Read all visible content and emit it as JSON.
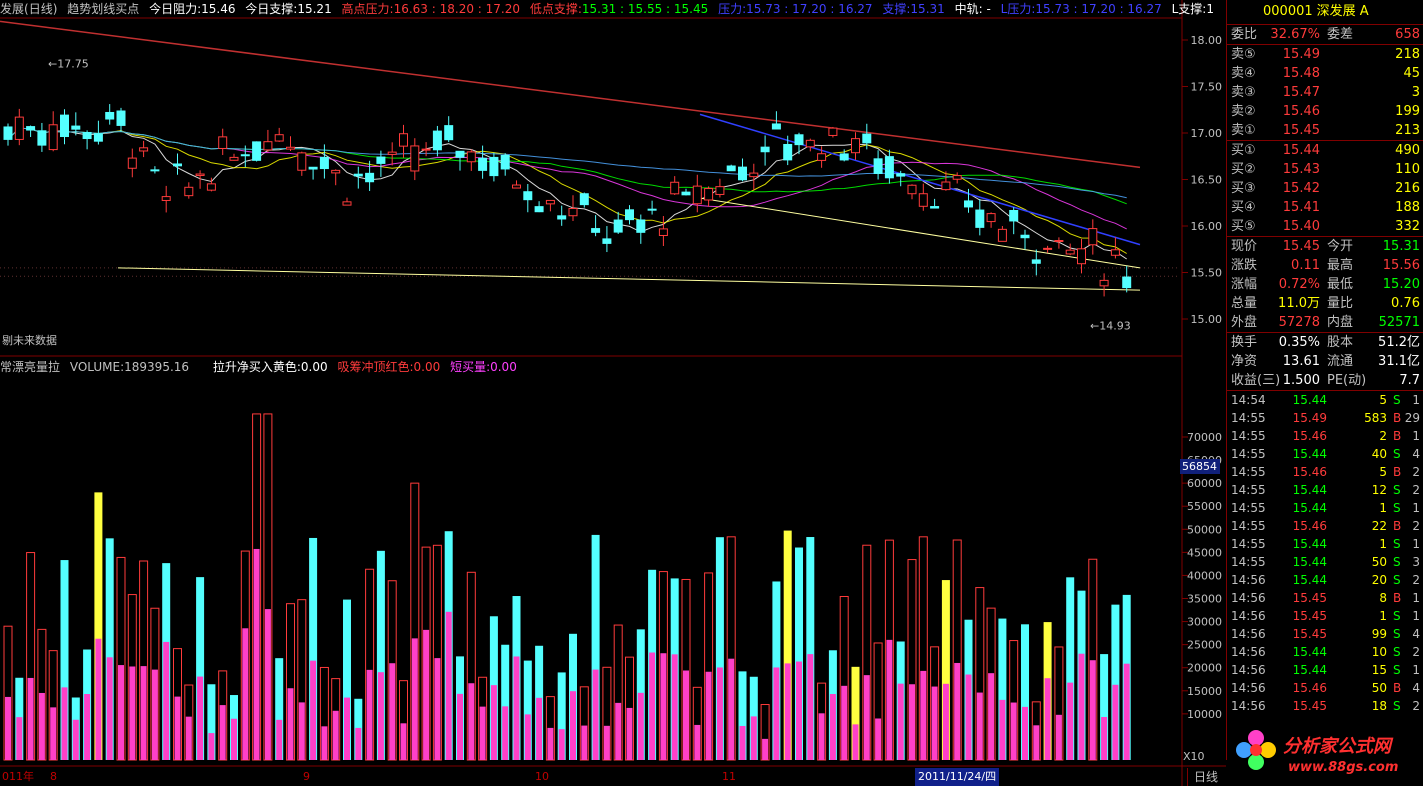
{
  "header": {
    "stock": "发展",
    "period": "(日线)",
    "indicator": "趋势划线买点",
    "resist_label": "今日阻力:",
    "resist_value": "15.46",
    "support_label": "今日支撑:",
    "support_value": "15.21",
    "high_label": "高点压力:",
    "high_values": "16.63 : 18.20 : 17.20",
    "low_label": "低点支撑:",
    "low_values": "15.31 : 15.55 : 15.45",
    "press_label": "压力:",
    "press_values": "15.73 : 17.20 : 16.27",
    "sup2_label": "支撑:",
    "sup2_value": "15.31",
    "mid_label": "中轨: -",
    "lpress_label": "L压力:",
    "lpress_values": "15.73 : 17.20 : 16.27",
    "lsup_label": "L支撑:",
    "lsup_value": "1"
  },
  "volume_header": {
    "title": "常漂亮量拉",
    "volume_label": "VOLUME:",
    "volume_value": "189395.16",
    "buy_label": "拉升净买入黄色:",
    "buy_value": "0.00",
    "absorb_label": "吸筹冲顶红色:",
    "absorb_value": "0.00",
    "short_label": "短买量:",
    "short_value": "0.00"
  },
  "future_note": "剔未来数据",
  "x10": "X10",
  "vol_marker": "56854",
  "price_axis": [
    "18.00",
    "17.50",
    "17.00",
    "16.50",
    "16.00",
    "15.50",
    "15.00"
  ],
  "vol_axis": [
    "70000",
    "65000",
    "60000",
    "55000",
    "50000",
    "45000",
    "40000",
    "35000",
    "30000",
    "25000",
    "20000",
    "15000",
    "10000"
  ],
  "annotations": {
    "high": "17.75",
    "low": "14.93"
  },
  "datebar": {
    "year": "011年",
    "m8": "8",
    "m9": "9",
    "m10": "10",
    "m11": "11",
    "cursor": "2011/11/24/四"
  },
  "period_tab": "日线",
  "quote": {
    "code": "000001",
    "name": "深发展 A",
    "webi_label": "委比",
    "webi_value": "32.67%",
    "weicha_label": "委差",
    "weicha_value": "658",
    "sell": [
      {
        "label": "卖⑤",
        "price": "15.49",
        "vol": "218"
      },
      {
        "label": "卖④",
        "price": "15.48",
        "vol": "45"
      },
      {
        "label": "卖③",
        "price": "15.47",
        "vol": "3"
      },
      {
        "label": "卖②",
        "price": "15.46",
        "vol": "199"
      },
      {
        "label": "卖①",
        "price": "15.45",
        "vol": "213"
      }
    ],
    "buy": [
      {
        "label": "买①",
        "price": "15.44",
        "vol": "490"
      },
      {
        "label": "买②",
        "price": "15.43",
        "vol": "110"
      },
      {
        "label": "买③",
        "price": "15.42",
        "vol": "216"
      },
      {
        "label": "买④",
        "price": "15.41",
        "vol": "188"
      },
      {
        "label": "买⑤",
        "price": "15.40",
        "vol": "332"
      }
    ],
    "stats": [
      {
        "l1": "现价",
        "v1": "15.45",
        "c1": "red",
        "l2": "今开",
        "v2": "15.31",
        "c2": "green"
      },
      {
        "l1": "涨跌",
        "v1": "0.11",
        "c1": "red",
        "l2": "最高",
        "v2": "15.56",
        "c2": "red"
      },
      {
        "l1": "涨幅",
        "v1": "0.72%",
        "c1": "red",
        "l2": "最低",
        "v2": "15.20",
        "c2": "green"
      },
      {
        "l1": "总量",
        "v1": "11.0万",
        "c1": "yellow",
        "l2": "量比",
        "v2": "0.76",
        "c2": "yellow"
      },
      {
        "l1": "外盘",
        "v1": "57278",
        "c1": "red",
        "l2": "内盘",
        "v2": "52571",
        "c2": "green"
      }
    ],
    "fund": [
      {
        "l1": "换手",
        "v1": "0.35%",
        "l2": "股本",
        "v2": "51.2亿"
      },
      {
        "l1": "净资",
        "v1": "13.61",
        "l2": "流通",
        "v2": "31.1亿"
      },
      {
        "l1": "收益(三)",
        "v1": "1.500",
        "l2": "PE(动)",
        "v2": "7.7"
      }
    ],
    "ticks": [
      {
        "t": "14:54",
        "p": "15.44",
        "v": "5",
        "d": "S",
        "n": "1"
      },
      {
        "t": "14:55",
        "p": "15.49",
        "v": "583",
        "d": "B",
        "n": "29"
      },
      {
        "t": "14:55",
        "p": "15.46",
        "v": "2",
        "d": "B",
        "n": "1"
      },
      {
        "t": "14:55",
        "p": "15.44",
        "v": "40",
        "d": "S",
        "n": "4"
      },
      {
        "t": "14:55",
        "p": "15.46",
        "v": "5",
        "d": "B",
        "n": "2"
      },
      {
        "t": "14:55",
        "p": "15.44",
        "v": "12",
        "d": "S",
        "n": "2"
      },
      {
        "t": "14:55",
        "p": "15.44",
        "v": "1",
        "d": "S",
        "n": "1"
      },
      {
        "t": "14:55",
        "p": "15.46",
        "v": "22",
        "d": "B",
        "n": "2"
      },
      {
        "t": "14:55",
        "p": "15.44",
        "v": "1",
        "d": "S",
        "n": "1"
      },
      {
        "t": "14:55",
        "p": "15.44",
        "v": "50",
        "d": "S",
        "n": "3"
      },
      {
        "t": "14:56",
        "p": "15.44",
        "v": "20",
        "d": "S",
        "n": "2"
      },
      {
        "t": "14:56",
        "p": "15.45",
        "v": "8",
        "d": "B",
        "n": "1"
      },
      {
        "t": "14:56",
        "p": "15.45",
        "v": "1",
        "d": "S",
        "n": "1"
      },
      {
        "t": "14:56",
        "p": "15.45",
        "v": "99",
        "d": "S",
        "n": "4"
      },
      {
        "t": "14:56",
        "p": "15.44",
        "v": "10",
        "d": "S",
        "n": "2"
      },
      {
        "t": "14:56",
        "p": "15.44",
        "v": "15",
        "d": "S",
        "n": "1"
      },
      {
        "t": "14:56",
        "p": "15.46",
        "v": "50",
        "d": "B",
        "n": "4"
      },
      {
        "t": "14:56",
        "p": "15.45",
        "v": "18",
        "d": "S",
        "n": "2"
      }
    ]
  },
  "logo": {
    "text": "分析家公式网",
    "url": "www.88gs.com"
  },
  "colors": {
    "up": "#ff3b3b",
    "down": "#54ffff",
    "vol_magenta": "#ff40c8",
    "grid": "#800000"
  }
}
